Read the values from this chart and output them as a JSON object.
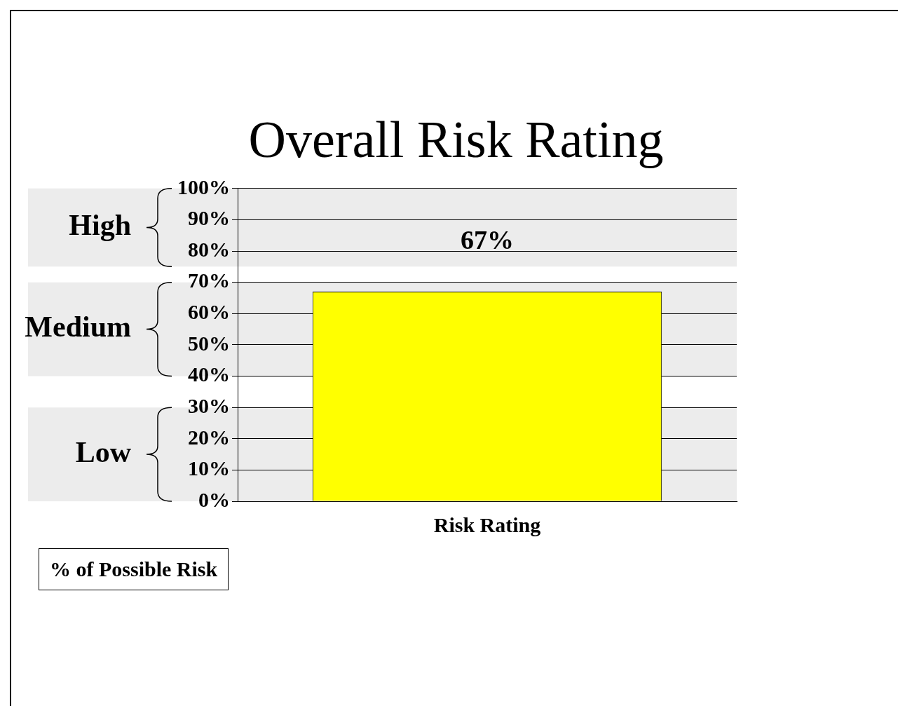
{
  "chart_data": {
    "type": "bar",
    "title": "Overall Risk Rating",
    "categories": [
      "Risk Rating"
    ],
    "values": [
      67
    ],
    "color": "#ffff00",
    "value_labels": [
      "67%"
    ],
    "ylim": [
      0,
      100
    ],
    "yticks": [
      {
        "value": 0,
        "label": "0%"
      },
      {
        "value": 10,
        "label": "10%"
      },
      {
        "value": 20,
        "label": "20%"
      },
      {
        "value": 30,
        "label": "30%"
      },
      {
        "value": 40,
        "label": "40%"
      },
      {
        "value": 50,
        "label": "50%"
      },
      {
        "value": 60,
        "label": "60%"
      },
      {
        "value": 70,
        "label": "70%"
      },
      {
        "value": 80,
        "label": "80%"
      },
      {
        "value": 90,
        "label": "90%"
      },
      {
        "value": 100,
        "label": "100%"
      }
    ],
    "grid": "y",
    "bands": [
      {
        "axis": "y",
        "from": 75,
        "to": 100,
        "label": "High",
        "color": "#ececec"
      },
      {
        "axis": "y",
        "from": 40,
        "to": 70,
        "label": "Medium",
        "color": "#ececec"
      },
      {
        "axis": "y",
        "from": 0,
        "to": 30,
        "label": "Low",
        "color": "#ececec"
      }
    ],
    "annotations": [
      "% of Possible Risk"
    ]
  }
}
